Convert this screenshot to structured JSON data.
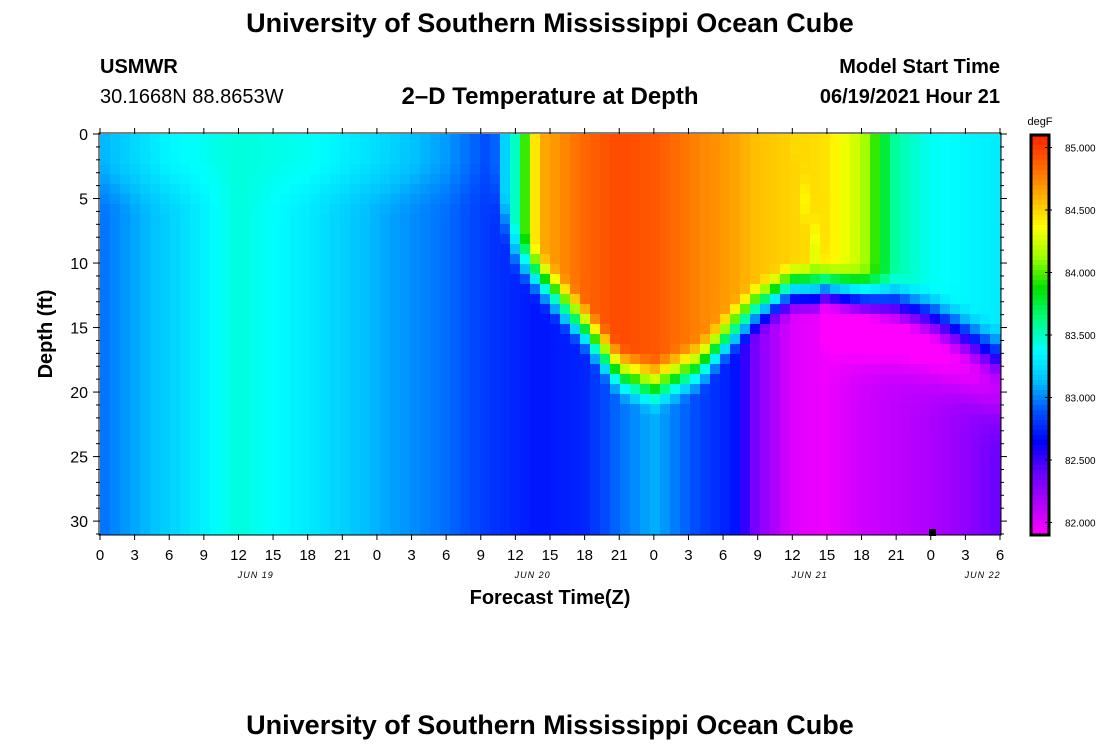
{
  "page": {
    "title_top": "University of Southern Mississippi Ocean Cube",
    "title_bottom": "University of Southern Mississippi Ocean Cube",
    "station_name": "USMWR",
    "station_coords": "30.1668N  88.8653W",
    "subtitle": "2–D Temperature at Depth",
    "model_start_label": "Model Start Time",
    "model_start_value": "06/19/2021 Hour 21"
  },
  "chart_data": {
    "type": "heatmap",
    "title": "2–D Temperature at Depth",
    "xlabel": "Forecast Time(Z)",
    "ylabel": "Depth (ft)",
    "x_tick_labels": [
      "0",
      "3",
      "6",
      "9",
      "12",
      "15",
      "18",
      "21",
      "0",
      "3",
      "6",
      "9",
      "12",
      "15",
      "18",
      "21",
      "0",
      "3",
      "6",
      "9",
      "12",
      "15",
      "18",
      "21",
      "0",
      "3",
      "6"
    ],
    "x_date_labels": [
      {
        "label": "JUN 19",
        "tick_index": 4.5
      },
      {
        "label": "JUN 20",
        "tick_index": 12.5
      },
      {
        "label": "JUN 21",
        "tick_index": 20.5
      },
      {
        "label": "JUN 22",
        "tick_index": 25.5
      }
    ],
    "x_range_hours": [
      0,
      78
    ],
    "y_ticks": [
      0,
      5,
      10,
      15,
      20,
      25,
      30
    ],
    "y_range": [
      0,
      31
    ],
    "y_inverted": true,
    "colorbar": {
      "unit": "degF",
      "min": 81.9,
      "max": 85.1,
      "tick_values": [
        85.0,
        84.5,
        84.0,
        83.5,
        83.0,
        82.5,
        82.0
      ],
      "tick_labels": [
        "85.000",
        "84.500",
        "84.000",
        "83.500",
        "83.000",
        "82.500",
        "82.000"
      ]
    },
    "temperature_profile": [
      {
        "hour": 0,
        "surface": 83.1,
        "bottom": 82.95,
        "bottom_onset": 3,
        "dip_center": 0,
        "dip_width": 1,
        "dip_depth": 0
      },
      {
        "hour": 6,
        "surface": 83.35,
        "bottom": 83.2,
        "bottom_onset": 3,
        "dip_center": 0,
        "dip_width": 1,
        "dip_depth": 0
      },
      {
        "hour": 12,
        "surface": 83.45,
        "bottom": 83.45,
        "bottom_onset": 3,
        "dip_center": 0,
        "dip_width": 1,
        "dip_depth": 0
      },
      {
        "hour": 18,
        "surface": 83.4,
        "bottom": 83.3,
        "bottom_onset": 3,
        "dip_center": 0,
        "dip_width": 1,
        "dip_depth": 0
      },
      {
        "hour": 24,
        "surface": 83.25,
        "bottom": 83.1,
        "bottom_onset": 3,
        "dip_center": 0,
        "dip_width": 1,
        "dip_depth": 0
      },
      {
        "hour": 30,
        "surface": 83.05,
        "bottom": 82.95,
        "bottom_onset": 3,
        "dip_center": 0,
        "dip_width": 1,
        "dip_depth": 0
      },
      {
        "hour": 34,
        "surface": 82.85,
        "bottom": 82.8,
        "bottom_onset": 3,
        "dip_center": 0,
        "dip_width": 1,
        "dip_depth": 0
      },
      {
        "hour": 36,
        "surface": 83.5,
        "bottom": 82.75,
        "bottom_onset": 8,
        "dip_center": 0,
        "dip_width": 1,
        "dip_depth": 0
      },
      {
        "hour": 38,
        "surface": 84.6,
        "bottom": 82.7,
        "bottom_onset": 10,
        "dip_center": 0,
        "dip_width": 1,
        "dip_depth": 0
      },
      {
        "hour": 42,
        "surface": 84.85,
        "bottom": 82.75,
        "bottom_onset": 14,
        "dip_center": 0,
        "dip_width": 1,
        "dip_depth": 0
      },
      {
        "hour": 45,
        "surface": 84.95,
        "bottom": 82.95,
        "bottom_onset": 17.5,
        "dip_center": 0,
        "dip_width": 1,
        "dip_depth": 0
      },
      {
        "hour": 48,
        "surface": 84.9,
        "bottom": 83.1,
        "bottom_onset": 18.5,
        "dip_center": 0,
        "dip_width": 1,
        "dip_depth": 0
      },
      {
        "hour": 52,
        "surface": 84.75,
        "bottom": 82.85,
        "bottom_onset": 17,
        "dip_center": 0,
        "dip_width": 1,
        "dip_depth": 0
      },
      {
        "hour": 55,
        "surface": 84.65,
        "bottom": 82.7,
        "bottom_onset": 14,
        "dip_center": 0,
        "dip_width": 1,
        "dip_depth": 0
      },
      {
        "hour": 57,
        "surface": 84.55,
        "bottom": 82.3,
        "bottom_onset": 12.5,
        "dip_center": 0,
        "dip_width": 1,
        "dip_depth": 0
      },
      {
        "hour": 60,
        "surface": 84.5,
        "bottom": 82.0,
        "bottom_onset": 11,
        "dip_center": 0,
        "dip_width": 1,
        "dip_depth": 0
      },
      {
        "hour": 63,
        "surface": 84.45,
        "bottom": 81.95,
        "bottom_onset": 11,
        "dip_center": 14,
        "dip_width": 2.5,
        "dip_depth": 0.25
      },
      {
        "hour": 66,
        "surface": 84.2,
        "bottom": 82.05,
        "bottom_onset": 11.5,
        "dip_center": 15,
        "dip_width": 2.5,
        "dip_depth": 0.3
      },
      {
        "hour": 69,
        "surface": 83.55,
        "bottom": 82.1,
        "bottom_onset": 12,
        "dip_center": 15.5,
        "dip_width": 2.5,
        "dip_depth": 0.3
      },
      {
        "hour": 72,
        "surface": 83.4,
        "bottom": 82.15,
        "bottom_onset": 13,
        "dip_center": 16.5,
        "dip_width": 2.5,
        "dip_depth": 0.3
      },
      {
        "hour": 75,
        "surface": 83.35,
        "bottom": 82.25,
        "bottom_onset": 14.5,
        "dip_center": 18,
        "dip_width": 2.5,
        "dip_depth": 0.3
      },
      {
        "hour": 78,
        "surface": 83.3,
        "bottom": 82.4,
        "bottom_onset": 16,
        "dip_center": 20,
        "dip_width": 2.5,
        "dip_depth": 0.3
      }
    ],
    "grid": false,
    "legend": "colorbar-right"
  },
  "colors": {
    "text": "#000000",
    "background": "#ffffff",
    "palette": [
      "#ff00ff",
      "#b000ff",
      "#6a00ff",
      "#0000ff",
      "#0050ff",
      "#00bfff",
      "#00ffff",
      "#00ff80",
      "#00e000",
      "#9bff00",
      "#ffff00",
      "#ffb000",
      "#ff6400",
      "#ff2000"
    ]
  }
}
